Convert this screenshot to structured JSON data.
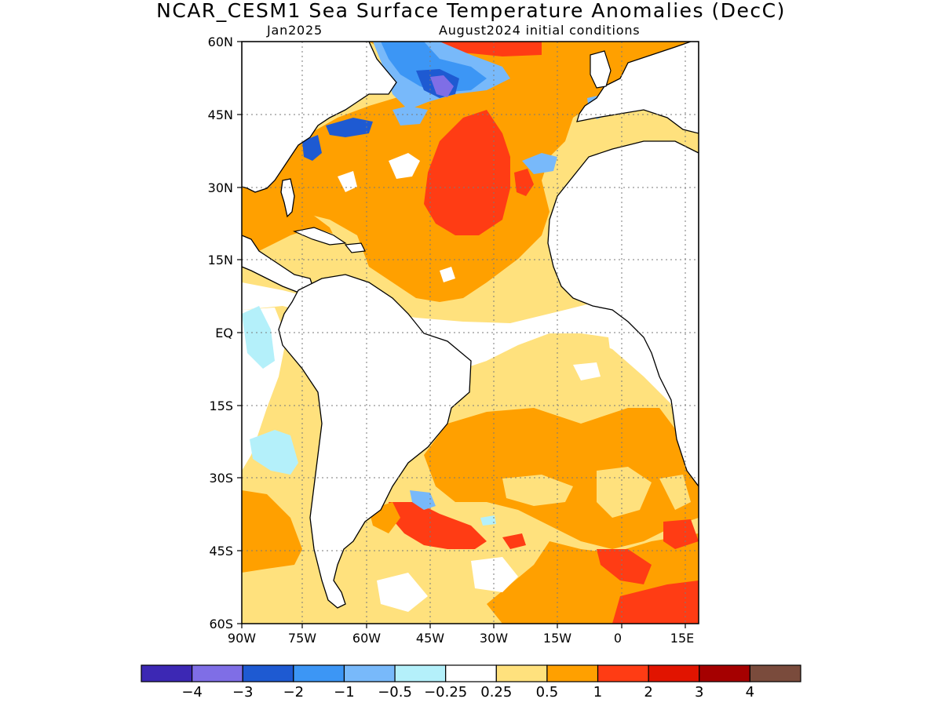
{
  "title": "NCAR_CESM1 Sea Surface Temperature Anomalies (DecC)",
  "subtitle_left": "Jan2025",
  "subtitle_right": "August2024 initial conditions",
  "lat_labels": [
    "60N",
    "45N",
    "30N",
    "15N",
    "EQ",
    "15S",
    "30S",
    "45S",
    "60S"
  ],
  "lon_labels": [
    "90W",
    "75W",
    "60W",
    "45W",
    "30W",
    "15W",
    "0",
    "15E"
  ],
  "legend": {
    "colors": [
      "#3c28b4",
      "#7f6ee6",
      "#1e5ad2",
      "#3c96f5",
      "#78b9fa",
      "#b4f0fa",
      "#ffffff",
      "#ffe17d",
      "#ffa000",
      "#ff3c14",
      "#e11400",
      "#a50000",
      "#7a4b3c"
    ],
    "labels": [
      "−4",
      "−3",
      "−2",
      "−1",
      "−0.5",
      "−0.25",
      "0.25",
      "0.5",
      "1",
      "2",
      "3",
      "4"
    ]
  },
  "map_colors": {
    "white": "#ffffff",
    "light_yellow": "#ffe17d",
    "orange": "#ffa000",
    "red": "#ff3c14",
    "light_blue": "#b4f0fa",
    "mid_blue": "#78b9fa",
    "blue": "#3c96f5",
    "dark_blue": "#1e5ad2",
    "purple": "#7f6ee6"
  }
}
